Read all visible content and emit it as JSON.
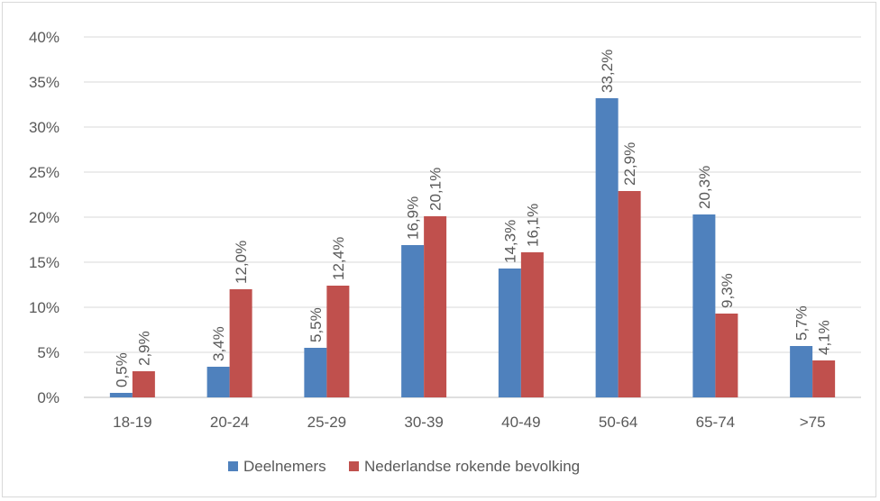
{
  "chart_data": {
    "type": "bar",
    "categories": [
      "18-19",
      "20-24",
      "25-29",
      "30-39",
      "40-49",
      "50-64",
      "65-74",
      ">75"
    ],
    "series": [
      {
        "name": "Deelnemers",
        "values": [
          0.5,
          3.4,
          5.5,
          16.9,
          14.3,
          33.2,
          20.3,
          5.7
        ],
        "labels": [
          "0,5%",
          "3,4%",
          "5,5%",
          "16,9%",
          "14,3%",
          "33,2%",
          "20,3%",
          "5,7%"
        ],
        "color": "#4f81bd"
      },
      {
        "name": "Nederlandse rokende bevolking",
        "values": [
          2.9,
          12.0,
          12.4,
          20.1,
          16.1,
          22.9,
          9.3,
          4.1
        ],
        "labels": [
          "2,9%",
          "12,0%",
          "12,4%",
          "20,1%",
          "16,1%",
          "22,9%",
          "9,3%",
          "4,1%"
        ],
        "color": "#c0504d"
      }
    ],
    "ylim": [
      0,
      40
    ],
    "yticks": [
      0,
      5,
      10,
      15,
      20,
      25,
      30,
      35,
      40
    ],
    "ytick_labels": [
      "0%",
      "5%",
      "10%",
      "15%",
      "20%",
      "25%",
      "30%",
      "35%",
      "40%"
    ],
    "grid": true,
    "legend_position": "bottom",
    "title": "",
    "xlabel": "",
    "ylabel": ""
  }
}
